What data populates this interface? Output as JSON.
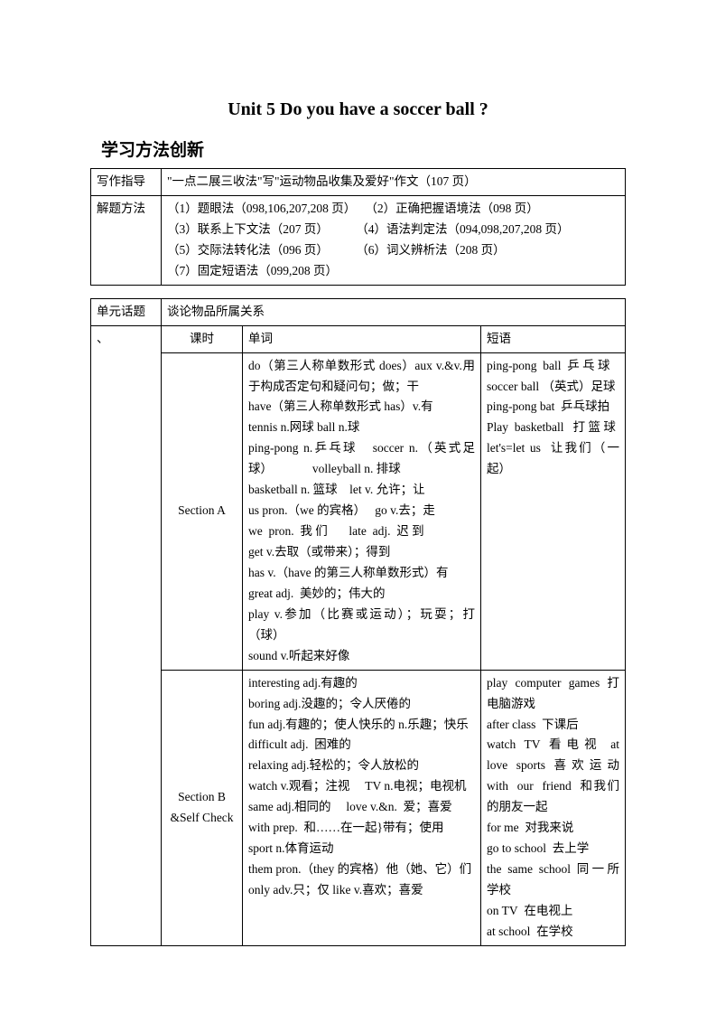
{
  "title": "Unit 5 Do you have a soccer ball ?",
  "subtitle": "学习方法创新",
  "table1": {
    "r1": {
      "label": "写作指导",
      "content": "\"一点二展三收法\"写\"运动物品收集及爱好\"作文（107 页）"
    },
    "r2": {
      "label": "解题方法",
      "c1": "（1）题眼法（098,106,207,208 页）   （2）正确把握语境法（098 页）\n（3）联系上下文法（207 页）         （4）语法判定法（094,098,207,208 页）\n（5）交际法转化法（096 页）         （6）词义辨析法（208 页）\n（7）固定短语法（099,208 页）"
    }
  },
  "table2": {
    "r1": {
      "label": "单元话题",
      "content": "谈论物品所属关系"
    },
    "r2": {
      "label": "、",
      "c1": "课时",
      "c2": "单词",
      "c3": "短语"
    },
    "r3": {
      "sec": "Section A",
      "danci": "do（第三人称单数形式 does）aux v.&v.用于构成否定句和疑问句；做；干\nhave（第三人称单数形式 has）v.有\ntennis n.网球 ball n.球\nping-pong n.乒乓球   soccer n.（英式足球）             volleyball n. 排球\nbasketball n. 篮球    let v. 允许；让\nus pron.（we 的宾格）   go v.去；走\nwe  pron.  我 们       late  adj.  迟 到\nget v.去取（或带来）；得到\nhas v.（have 的第三人称单数形式）有\ngreat adj.  美妙的；伟大的\nplay v.参加（比赛或运动）；玩耍；打（球）\nsound v.听起来好像",
      "duanyu": "ping-pong  ball  乒 乓 球\nsoccer ball （英式）足球\nping-pong bat  乒乓球拍\nPlay  basketball   打 篮 球\nlet's=let us  让我们（一起）"
    },
    "r4": {
      "sec": "Section B\n&Self Check",
      "danci": "interesting adj.有趣的\nboring adj.没趣的；令人厌倦的\nfun adj.有趣的；使人快乐的 n.乐趣；快乐\ndifficult adj.  困难的\nrelaxing adj.轻松的；令人放松的\nwatch v.观看；注视     TV n.电视；电视机\nsame adj.相同的     love v.&n.  爱；喜爱\nwith prep.  和……在一起}带有；使用\nsport n.体育运动\nthem pron.（they 的宾格）他（她、它）们\nonly adv.只；仅 like v.喜欢；喜爱",
      "duanyu": "play  computer  games  打电脑游戏\nafter class  下课后\nwatch  TV  看 电 视   at love  sports  喜 欢 运 动 with  our  friend  和我们的朋友一起\nfor me  对我来说\ngo to school  去上学\nthe  same  school  同 一 所学校\non TV  在电视上\nat school  在学校"
    }
  }
}
